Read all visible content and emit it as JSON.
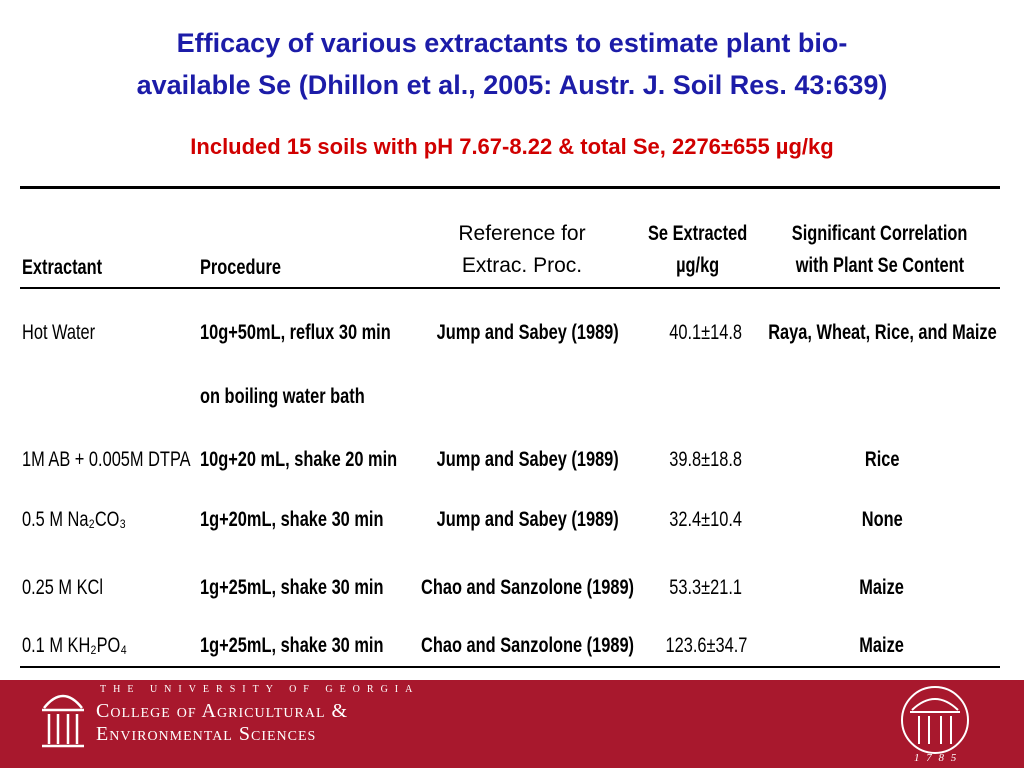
{
  "header": {
    "title_lines": [
      "Efficacy of various extractants to estimate plant bio-",
      "available Se (Dhillon et al., 2005: Austr. J. Soil Res. 43:639)"
    ],
    "subtitle": "Included 15 soils with pH 7.67-8.22 & total Se, 2276±655 µg/kg"
  },
  "table": {
    "columns": {
      "extractant": [
        "Extractant"
      ],
      "procedure": [
        "Procedure"
      ],
      "reference": [
        "Reference for",
        "Extrac. Proc."
      ],
      "se": [
        "Se Extracted",
        "µg/kg"
      ],
      "correlation": [
        "Significant Correlation",
        "with Plant Se Content"
      ]
    },
    "rows": [
      {
        "extractant": "Hot Water",
        "procedure": [
          "10g+50mL, reflux 30 min",
          "on boiling water bath"
        ],
        "reference": "Jump and Sabey (1989)",
        "se": "40.1±14.8",
        "correlation": "Raya, Wheat, Rice, and Maize"
      },
      {
        "extractant": "1M AB + 0.005M DTPA",
        "procedure": [
          "10g+20 mL, shake 20 min"
        ],
        "reference": "Jump and Sabey (1989)",
        "se": "39.8±18.8",
        "correlation": "Rice"
      },
      {
        "extractant": "0.5 M Na₂CO₃",
        "procedure": [
          "1g+20mL, shake 30 min"
        ],
        "reference": "Jump and Sabey (1989)",
        "se": "32.4±10.4",
        "correlation": "None"
      },
      {
        "extractant": "0.25 M KCl",
        "procedure": [
          "1g+25mL, shake 30 min"
        ],
        "reference": "Chao and Sanzolone (1989)",
        "se": "53.3±21.1",
        "correlation": "Maize"
      },
      {
        "extractant": "0.1 M KH₂PO₄",
        "procedure": [
          "1g+25mL, shake 30 min"
        ],
        "reference": "Chao and Sanzolone (1989)",
        "se": "123.6±34.7",
        "correlation": "Maize"
      }
    ]
  },
  "footer": {
    "university": "THE UNIVERSITY OF GEORGIA",
    "college_line1": "College of Agricultural &",
    "college_line2": "Environmental Sciences",
    "year": "1 7 8 5"
  }
}
